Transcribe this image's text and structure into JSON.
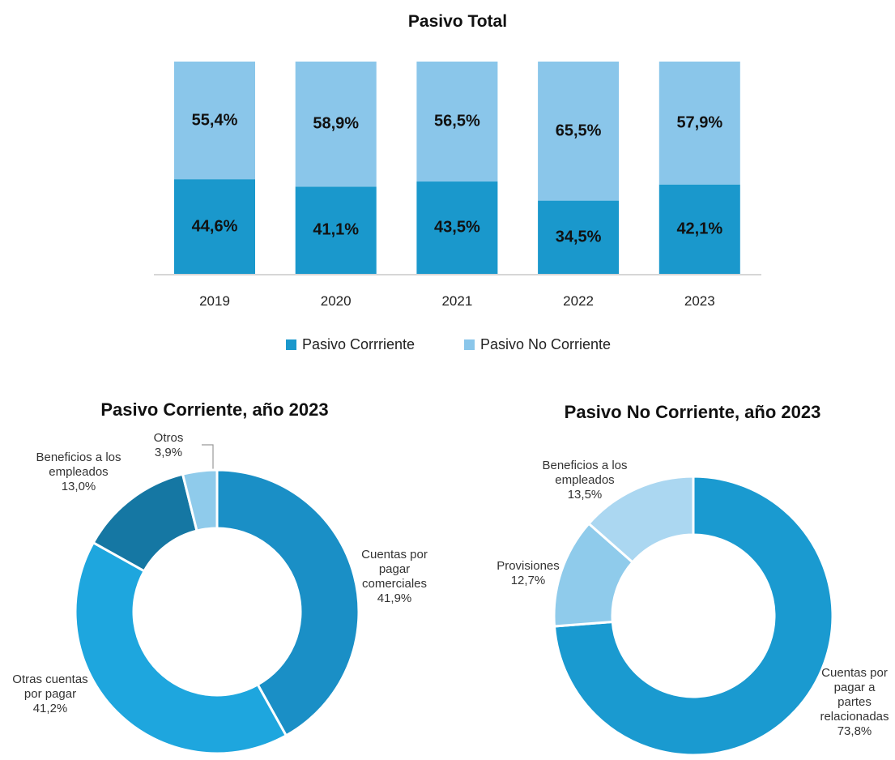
{
  "chart_data": [
    {
      "type": "bar",
      "stacked": true,
      "title": "Pasivo Total",
      "categories": [
        "2019",
        "2020",
        "2021",
        "2022",
        "2023"
      ],
      "series": [
        {
          "name": "Pasivo Corrriente",
          "color": "#1a98cc",
          "values": [
            44.6,
            41.1,
            43.5,
            34.5,
            42.1
          ],
          "value_labels": [
            "44,6%",
            "41,1%",
            "43,5%",
            "34,5%",
            "42,1%"
          ]
        },
        {
          "name": "Pasivo No Corriente",
          "color": "#8ac6ea",
          "values": [
            55.4,
            58.9,
            56.5,
            65.5,
            57.9
          ],
          "value_labels": [
            "55,4%",
            "58,9%",
            "56,5%",
            "65,5%",
            "57,9%"
          ]
        }
      ],
      "ylim": [
        0,
        100
      ],
      "legend": "bottom"
    },
    {
      "type": "donut",
      "title": "Pasivo Corriente, año 2023",
      "categories": [
        "Cuentas por pagar comerciales",
        "Otras cuentas por pagar",
        "Beneficios a los empleados",
        "Otros"
      ],
      "values": [
        41.9,
        41.2,
        13.0,
        3.9
      ],
      "value_labels": [
        "41,9%",
        "41,2%",
        "13,0%",
        "3,9%"
      ],
      "colors": [
        "#1a8fc6",
        "#1ea6de",
        "#1577a3",
        "#8fcbeb"
      ]
    },
    {
      "type": "donut",
      "title": "Pasivo No Corriente, año 2023",
      "categories": [
        "Cuentas por pagar a partes relacionadas",
        "Provisiones",
        "Beneficios a los empleados"
      ],
      "values": [
        73.8,
        12.7,
        13.5
      ],
      "value_labels": [
        "73,8%",
        "12,7%",
        "13,5%"
      ],
      "colors": [
        "#1a9ad0",
        "#8fcbeb",
        "#abd7f1"
      ]
    }
  ]
}
